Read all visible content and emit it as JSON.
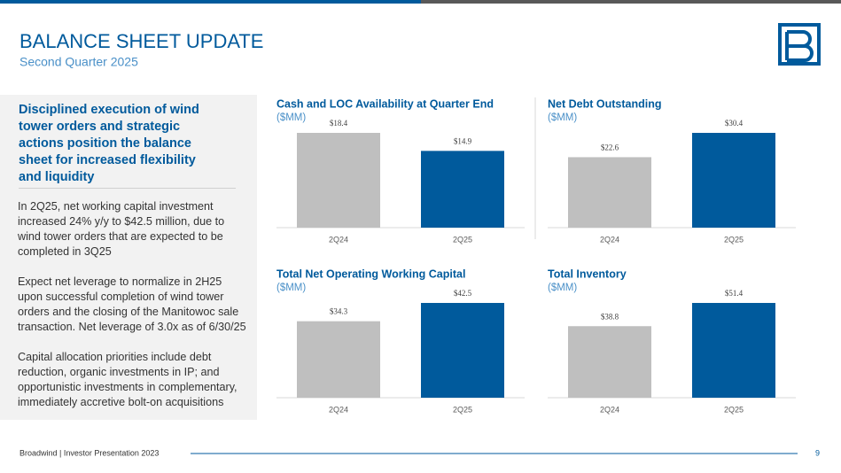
{
  "header": {
    "title": "BALANCE SHEET UPDATE",
    "subtitle": "Second Quarter 2025"
  },
  "sidebar": {
    "heading": "Disciplined execution of wind tower orders and strategic actions position the balance sheet for increased flexibility and liquidity",
    "paragraphs": [
      "In 2Q25, net working capital investment increased 24% y/y to $42.5 million, due to wind tower orders that are expected to be completed in 3Q25",
      "Expect net leverage to normalize in 2H25 upon successful completion of wind tower orders and the closing of the Manitowoc sale transaction. Net leverage of 3.0x as of 6/30/25",
      "Capital allocation priorities include debt reduction, organic investments in IP; and opportunistic investments in complementary, immediately accretive bolt-on acquisitions"
    ]
  },
  "chart_data": [
    {
      "type": "bar",
      "title": "Cash and LOC Availability at Quarter End",
      "subtitle": "($MM)",
      "categories": [
        "2Q24",
        "2Q25"
      ],
      "values": [
        18.4,
        14.9
      ],
      "value_labels": [
        "$18.4",
        "$14.9"
      ],
      "colors": [
        "#bfbfbf",
        "#005a9c"
      ]
    },
    {
      "type": "bar",
      "title": "Net Debt Outstanding",
      "subtitle": "($MM)",
      "categories": [
        "2Q24",
        "2Q25"
      ],
      "values": [
        22.6,
        30.4
      ],
      "value_labels": [
        "$22.6",
        "$30.4"
      ],
      "colors": [
        "#bfbfbf",
        "#005a9c"
      ]
    },
    {
      "type": "bar",
      "title": "Total Net Operating Working Capital",
      "subtitle": "($MM)",
      "categories": [
        "2Q24",
        "2Q25"
      ],
      "values": [
        34.3,
        42.5
      ],
      "value_labels": [
        "$34.3",
        "$42.5"
      ],
      "colors": [
        "#bfbfbf",
        "#005a9c"
      ]
    },
    {
      "type": "bar",
      "title": "Total Inventory",
      "subtitle": "($MM)",
      "categories": [
        "2Q24",
        "2Q25"
      ],
      "values": [
        38.8,
        51.4
      ],
      "value_labels": [
        "$38.8",
        "$51.4"
      ],
      "colors": [
        "#bfbfbf",
        "#005a9c"
      ]
    }
  ],
  "footer": {
    "source": "Broadwind | Investor Presentation 2023",
    "page": "9"
  }
}
